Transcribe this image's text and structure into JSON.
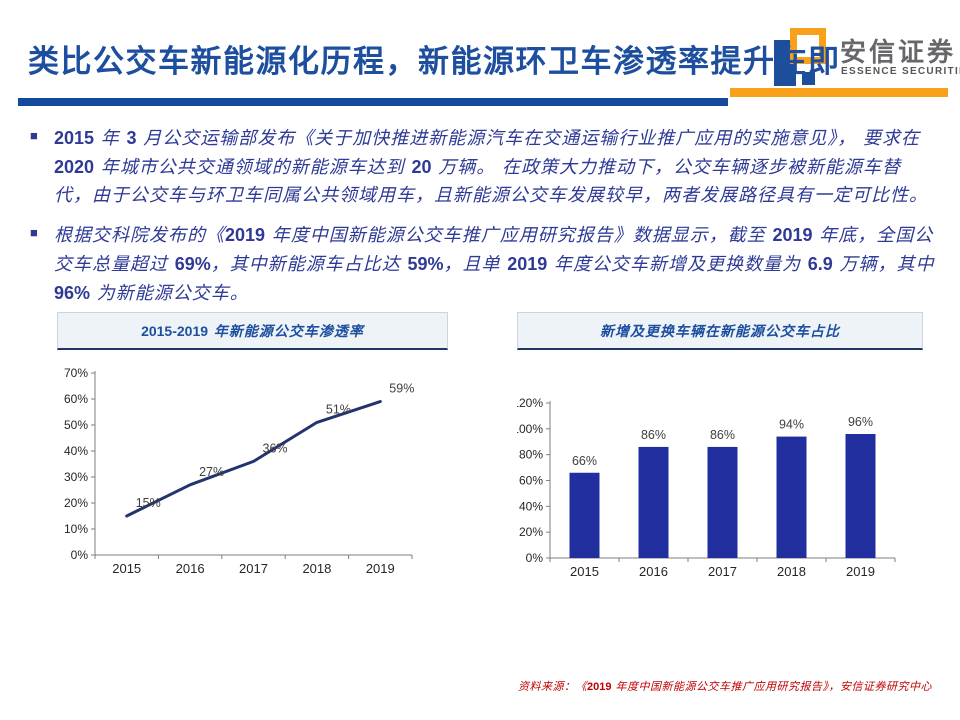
{
  "header": {
    "title": "类比公交车新能源化历程，新能源环卫车渗透率提升在即",
    "logo": {
      "cn": "安信证券",
      "en": "ESSENCE SECURITIES"
    }
  },
  "colors": {
    "title_blue": "#1d4f9e",
    "body_blue": "#2e3a96",
    "accent_orange": "#f9a11b",
    "rule_blue": "#15499c",
    "footer_red": "#c00000",
    "line_navy": "#24336e",
    "bar_blue": "#202f9d"
  },
  "paragraphs": [
    {
      "marker": "■",
      "text": "2015 年 3 月公交运输部发布《关于加快推进新能源汽车在交通运输行业推广应用的实施意见》， 要求在 2020 年城市公共交通领域的新能源车达到 20 万辆。 在政策大力推动下，公交车辆逐步被新能源车替代，由于公交车与环卫车同属公共领域用车，且新能源公交车发展较早，两者发展路径具有一定可比性。"
    },
    {
      "marker": "■",
      "text": "根据交科院发布的《2019 年度中国新能源公交车推广应用研究报告》数据显示，截至 2019 年底，全国公交车总量超过 69%，其中新能源车占比达 59%，且单 2019 年度公交车新增及更换数量为 6.9 万辆，其中 96% 为新能源公交车。"
    }
  ],
  "chart_data": [
    {
      "type": "line",
      "title": "2015-2019 年新能源公交车渗透率",
      "categories": [
        "2015",
        "2016",
        "2017",
        "2018",
        "2019"
      ],
      "values": [
        15,
        27,
        36,
        51,
        59
      ],
      "labels": [
        "15%",
        "27%",
        "36%",
        "51%",
        "59%"
      ],
      "ylabel": "",
      "xlabel": "",
      "ylim": [
        0,
        70
      ],
      "ytick_step": 10,
      "grid": false,
      "legend": "none",
      "color": "#24336e"
    },
    {
      "type": "bar",
      "title": "新增及更换车辆在新能源公交车占比",
      "categories": [
        "2015",
        "2016",
        "2017",
        "2018",
        "2019"
      ],
      "values": [
        66,
        86,
        86,
        94,
        96
      ],
      "labels": [
        "66%",
        "86%",
        "86%",
        "94%",
        "96%"
      ],
      "ylabel": "",
      "xlabel": "",
      "ylim": [
        0,
        120
      ],
      "ytick_step": 20,
      "grid": false,
      "legend": "none",
      "color": "#202f9d"
    }
  ],
  "footer": {
    "source": "资料来源：《2019 年度中国新能源公交车推广应用研究报告》，安信证券研究中心"
  }
}
